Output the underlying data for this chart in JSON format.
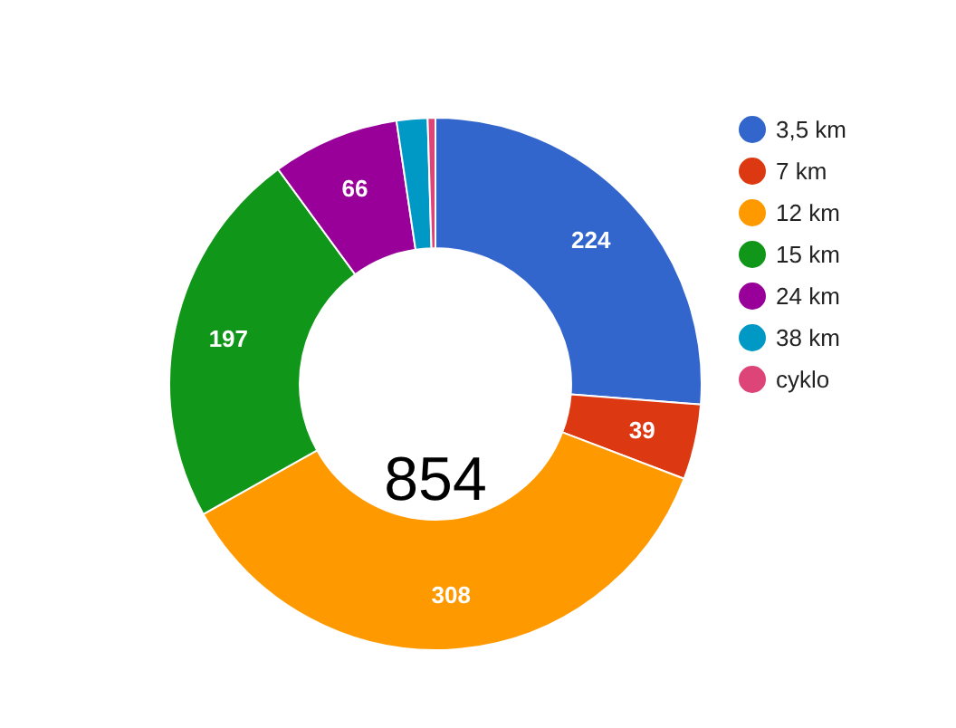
{
  "chart_data": {
    "type": "donut",
    "categories": [
      "3,5 km",
      "7 km",
      "12 km",
      "15 km",
      "24 km",
      "38 km",
      "cyklo"
    ],
    "values": [
      224,
      39,
      308,
      197,
      66,
      16,
      4
    ],
    "colors": [
      "#3366cc",
      "#dc3912",
      "#ff9900",
      "#109618",
      "#990099",
      "#0099c6",
      "#dd4477"
    ],
    "value_labels": [
      "224",
      "39",
      "308",
      "197",
      "66",
      null,
      null
    ],
    "annotations": [
      "854"
    ],
    "legend": "right"
  }
}
